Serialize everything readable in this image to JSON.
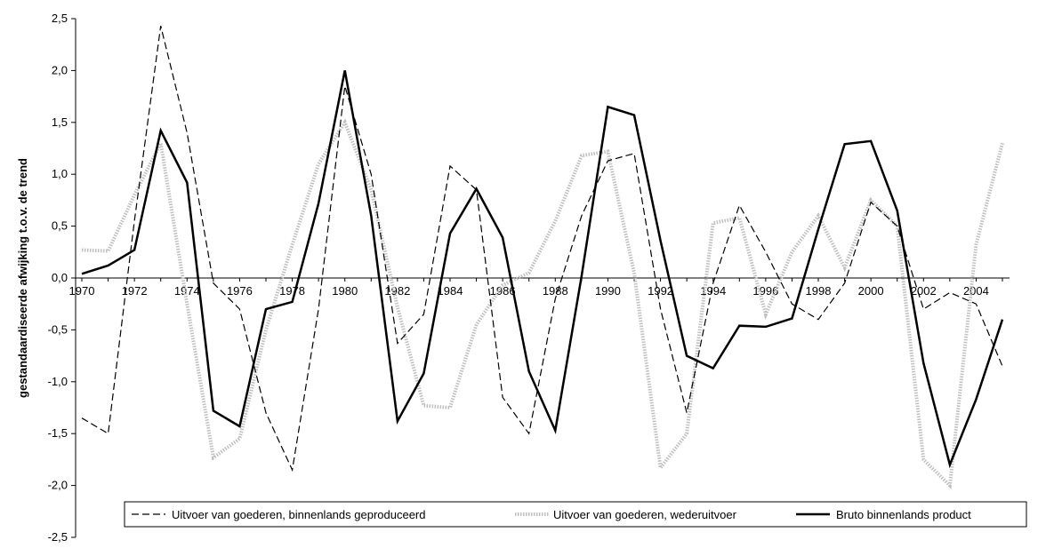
{
  "chart_data": {
    "type": "line",
    "title": "",
    "xlabel": "",
    "ylabel": "gestandaardiseerde afwijking t.o.v. de trend",
    "ylim": [
      -2.5,
      2.5
    ],
    "yticks": [
      2.5,
      2.0,
      1.5,
      1.0,
      0.5,
      0.0,
      -0.5,
      -1.0,
      -1.5,
      -2.0,
      -2.5
    ],
    "ytick_labels": [
      "2,5",
      "2,0",
      "1,5",
      "1,0",
      "0,5",
      "0,0",
      "-0,5",
      "-1,0",
      "-1,5",
      "-2,0",
      "-2,5"
    ],
    "xtick_labels": [
      "1970",
      "1972",
      "1974",
      "1976",
      "1978",
      "1980",
      "1982",
      "1984",
      "1986",
      "1988",
      "1990",
      "1992",
      "1994",
      "1996",
      "1998",
      "2000",
      "2002",
      "2004"
    ],
    "grid": false,
    "legend_position": "bottom",
    "x": [
      1970,
      1971,
      1972,
      1973,
      1974,
      1975,
      1976,
      1977,
      1978,
      1979,
      1980,
      1981,
      1982,
      1983,
      1984,
      1985,
      1986,
      1987,
      1988,
      1989,
      1990,
      1991,
      1992,
      1993,
      1994,
      1995,
      1996,
      1997,
      1998,
      1999,
      2000,
      2001,
      2002,
      2003,
      2004,
      2005
    ],
    "series": [
      {
        "name": "Uitvoer van goederen, binnenlands geproduceerd",
        "style": "dashed",
        "color": "#000000",
        "values": [
          -1.35,
          -1.5,
          0.55,
          2.43,
          1.4,
          -0.05,
          -0.3,
          -1.3,
          -1.85,
          -0.3,
          1.85,
          1.0,
          -0.63,
          -0.35,
          1.08,
          0.85,
          -1.15,
          -1.5,
          -0.2,
          0.6,
          1.13,
          1.2,
          -0.3,
          -1.3,
          -0.05,
          0.7,
          0.25,
          -0.25,
          -0.4,
          -0.05,
          0.73,
          0.5,
          -0.3,
          -0.14,
          -0.25,
          -0.85
        ]
      },
      {
        "name": "Uitvoer van goederen, wederuitvoer",
        "style": "dotted",
        "color": "#c0c0c0",
        "values": [
          0.27,
          0.26,
          0.8,
          1.3,
          -0.25,
          -1.73,
          -1.55,
          -0.5,
          0.32,
          1.1,
          1.5,
          0.85,
          -0.28,
          -1.23,
          -1.25,
          -0.45,
          -0.07,
          0.05,
          0.55,
          1.18,
          1.22,
          0.05,
          -1.83,
          -1.5,
          0.53,
          0.58,
          -0.35,
          0.25,
          0.6,
          0.1,
          0.75,
          0.5,
          -1.75,
          -2.0,
          0.32,
          1.3
        ]
      },
      {
        "name": "Bruto binnenlands product",
        "style": "solid",
        "color": "#000000",
        "values": [
          0.04,
          0.12,
          0.27,
          1.42,
          0.92,
          -1.28,
          -1.43,
          -0.3,
          -0.23,
          0.72,
          2.0,
          0.6,
          -1.38,
          -0.92,
          0.43,
          0.86,
          0.39,
          -0.9,
          -1.47,
          0.02,
          1.65,
          1.57,
          0.36,
          -0.75,
          -0.87,
          -0.46,
          -0.47,
          -0.39,
          0.47,
          1.29,
          1.32,
          0.65,
          -0.82,
          -1.8,
          -1.17,
          -0.4
        ]
      }
    ]
  }
}
